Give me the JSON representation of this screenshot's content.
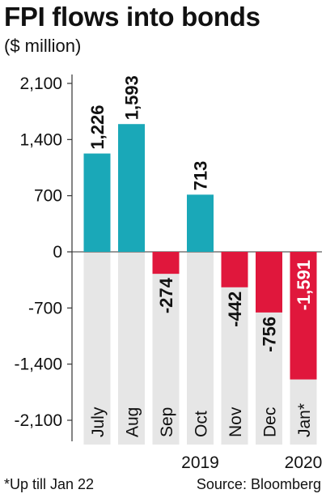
{
  "header": {
    "title": "FPI flows into bonds",
    "subtitle": "($ million)"
  },
  "footer": {
    "footnote": "*Up till Jan 22",
    "source": "Source: Bloomberg"
  },
  "colors": {
    "positive": "#1aa8b8",
    "negative": "#e0173c",
    "column_band": "#e6e6e6",
    "axis": "#333333"
  },
  "chart_data": {
    "type": "bar",
    "title": "FPI flows into bonds",
    "ylabel": "($ million)",
    "categories": [
      "July",
      "Aug",
      "Sep",
      "Oct",
      "Nov",
      "Dec",
      "Jan*"
    ],
    "values": [
      1226,
      1593,
      -274,
      713,
      -442,
      -756,
      -1591
    ],
    "value_labels": [
      "1,226",
      "1,593",
      "-274",
      "713",
      "-442",
      "-756",
      "-1,591"
    ],
    "ylim": [
      -2100,
      2100
    ],
    "yticks": [
      2100,
      1400,
      700,
      0,
      -700,
      -1400,
      -2100
    ],
    "ytick_labels": [
      "2,100",
      "1,400",
      "700",
      "0",
      "-700",
      "-1,400",
      "-2,100"
    ],
    "year_labels": [
      {
        "label": "2019",
        "under_category": "Oct"
      },
      {
        "label": "2020",
        "under_category": "Jan*"
      }
    ],
    "grid": false,
    "legend": "none"
  }
}
